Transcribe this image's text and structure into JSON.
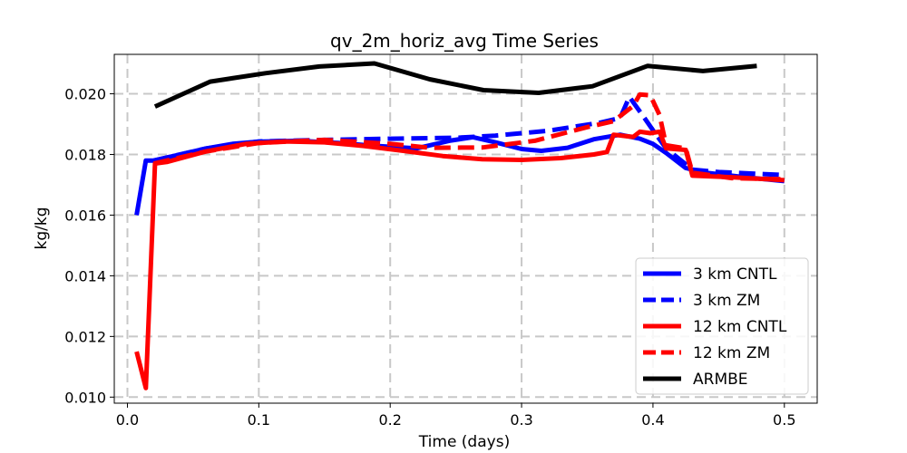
{
  "chart_data": {
    "type": "line",
    "title": "qv_2m_horiz_avg Time Series",
    "xlabel": "Time (days)",
    "ylabel": "kg/kg",
    "xlim": [
      -0.01,
      0.525
    ],
    "ylim": [
      0.0098,
      0.0213
    ],
    "xticks": [
      0.0,
      0.1,
      0.2,
      0.3,
      0.4,
      0.5
    ],
    "xtick_labels": [
      "0.0",
      "0.1",
      "0.2",
      "0.3",
      "0.4",
      "0.5"
    ],
    "yticks": [
      0.01,
      0.012,
      0.014,
      0.016,
      0.018,
      0.02
    ],
    "ytick_labels": [
      "0.010",
      "0.012",
      "0.014",
      "0.016",
      "0.018",
      "0.020"
    ],
    "grid": true,
    "legend_position": "lower-right",
    "series": [
      {
        "name": "3 km CNTL",
        "color": "#0000ff",
        "style": "solid",
        "points": [
          [
            0.007,
            0.016
          ],
          [
            0.014,
            0.0178
          ],
          [
            0.02,
            0.0178
          ],
          [
            0.04,
            0.018
          ],
          [
            0.06,
            0.0182
          ],
          [
            0.08,
            0.01835
          ],
          [
            0.1,
            0.01842
          ],
          [
            0.13,
            0.01845
          ],
          [
            0.16,
            0.01838
          ],
          [
            0.19,
            0.01828
          ],
          [
            0.22,
            0.0182
          ],
          [
            0.245,
            0.01845
          ],
          [
            0.263,
            0.01857
          ],
          [
            0.28,
            0.0184
          ],
          [
            0.3,
            0.01818
          ],
          [
            0.315,
            0.01812
          ],
          [
            0.335,
            0.01822
          ],
          [
            0.355,
            0.0185
          ],
          [
            0.375,
            0.01865
          ],
          [
            0.39,
            0.01852
          ],
          [
            0.4,
            0.01835
          ],
          [
            0.41,
            0.01805
          ],
          [
            0.425,
            0.01755
          ],
          [
            0.44,
            0.0174
          ],
          [
            0.47,
            0.01725
          ],
          [
            0.5,
            0.01712
          ]
        ]
      },
      {
        "name": "3 km ZM",
        "color": "#0000ff",
        "style": "dashed",
        "points": [
          [
            0.02,
            0.0178
          ],
          [
            0.06,
            0.0182
          ],
          [
            0.1,
            0.01843
          ],
          [
            0.15,
            0.01848
          ],
          [
            0.2,
            0.01852
          ],
          [
            0.25,
            0.01855
          ],
          [
            0.28,
            0.01862
          ],
          [
            0.32,
            0.01878
          ],
          [
            0.36,
            0.01905
          ],
          [
            0.375,
            0.0192
          ],
          [
            0.382,
            0.0199
          ],
          [
            0.392,
            0.0193
          ],
          [
            0.4,
            0.0188
          ],
          [
            0.41,
            0.0182
          ],
          [
            0.43,
            0.0175
          ],
          [
            0.45,
            0.01742
          ],
          [
            0.5,
            0.01732
          ]
        ]
      },
      {
        "name": "12 km CNTL",
        "color": "#ff0000",
        "style": "solid",
        "points": [
          [
            0.007,
            0.0115
          ],
          [
            0.014,
            0.0103
          ],
          [
            0.021,
            0.0177
          ],
          [
            0.03,
            0.01775
          ],
          [
            0.06,
            0.0181
          ],
          [
            0.09,
            0.01835
          ],
          [
            0.12,
            0.01843
          ],
          [
            0.15,
            0.0184
          ],
          [
            0.18,
            0.01828
          ],
          [
            0.21,
            0.01812
          ],
          [
            0.24,
            0.01795
          ],
          [
            0.27,
            0.01784
          ],
          [
            0.3,
            0.01782
          ],
          [
            0.33,
            0.01788
          ],
          [
            0.355,
            0.018
          ],
          [
            0.365,
            0.01808
          ],
          [
            0.37,
            0.01865
          ],
          [
            0.38,
            0.0186
          ],
          [
            0.385,
            0.01858
          ],
          [
            0.39,
            0.01875
          ],
          [
            0.398,
            0.0187
          ],
          [
            0.405,
            0.01875
          ],
          [
            0.41,
            0.0182
          ],
          [
            0.425,
            0.01815
          ],
          [
            0.43,
            0.0173
          ],
          [
            0.46,
            0.01725
          ],
          [
            0.5,
            0.01715
          ]
        ]
      },
      {
        "name": "12 km ZM",
        "color": "#ff0000",
        "style": "dashed",
        "points": [
          [
            0.02,
            0.0177
          ],
          [
            0.06,
            0.0181
          ],
          [
            0.1,
            0.01838
          ],
          [
            0.15,
            0.01848
          ],
          [
            0.2,
            0.01835
          ],
          [
            0.23,
            0.01822
          ],
          [
            0.27,
            0.01823
          ],
          [
            0.31,
            0.01845
          ],
          [
            0.35,
            0.0189
          ],
          [
            0.37,
            0.0191
          ],
          [
            0.385,
            0.0196
          ],
          [
            0.39,
            0.01998
          ],
          [
            0.398,
            0.01995
          ],
          [
            0.405,
            0.0193
          ],
          [
            0.41,
            0.0183
          ],
          [
            0.425,
            0.0182
          ],
          [
            0.43,
            0.0174
          ],
          [
            0.46,
            0.01722
          ],
          [
            0.5,
            0.01718
          ]
        ]
      },
      {
        "name": "ARMBE",
        "color": "#000000",
        "style": "solid",
        "points": [
          [
            0.021,
            0.01958
          ],
          [
            0.063,
            0.0204
          ],
          [
            0.105,
            0.02068
          ],
          [
            0.146,
            0.0209
          ],
          [
            0.188,
            0.021
          ],
          [
            0.23,
            0.02048
          ],
          [
            0.271,
            0.02012
          ],
          [
            0.313,
            0.02003
          ],
          [
            0.354,
            0.02025
          ],
          [
            0.396,
            0.02092
          ],
          [
            0.438,
            0.02075
          ],
          [
            0.479,
            0.02092
          ]
        ]
      }
    ]
  }
}
